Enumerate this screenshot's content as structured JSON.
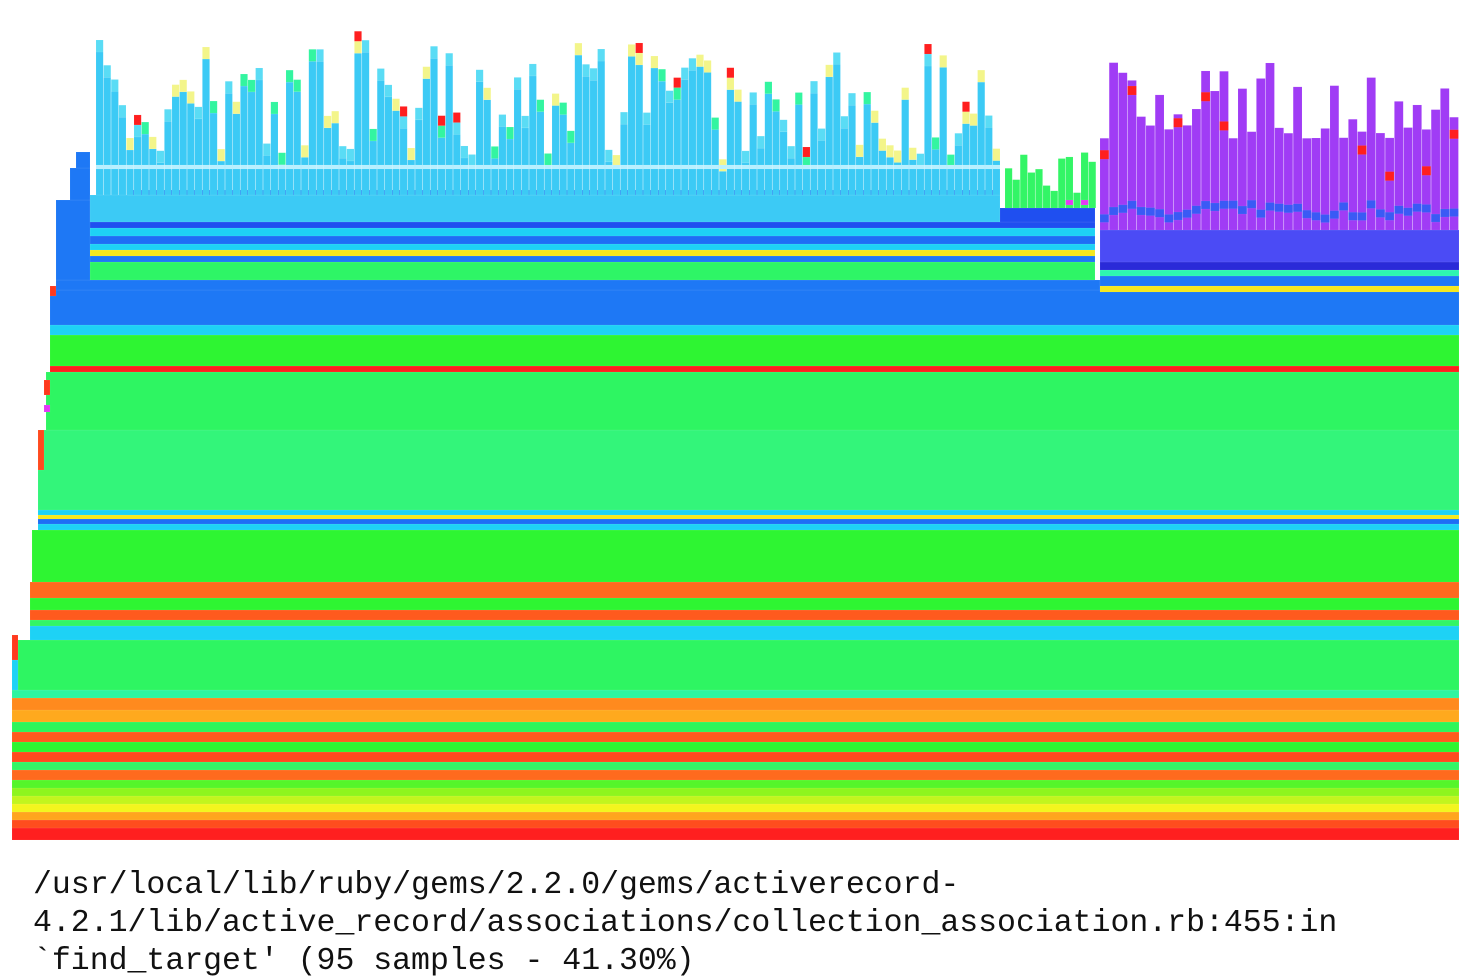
{
  "caption": {
    "lines": [
      "/usr/local/lib/ruby/gems/2.2.0/gems/activerecord-",
      "4.2.1/lib/active_record/associations/collection_association.rb:455:in",
      "`find_target' (95 samples - 41.30%)"
    ]
  }
}
